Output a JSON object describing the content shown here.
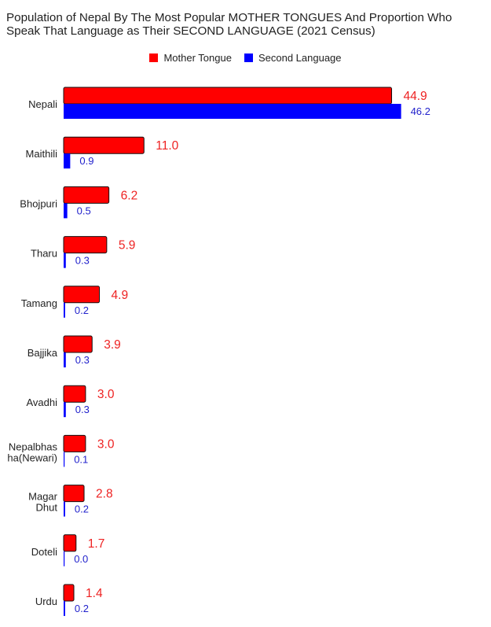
{
  "colors": {
    "mother": "#ff0000",
    "second": "#0000ff",
    "mother_label": "#ee2222",
    "second_label": "#2222cc"
  },
  "chart_data": {
    "type": "bar",
    "orientation": "horizontal",
    "title": "Population of Nepal By The Most Popular MOTHER TONGUES And Proportion Who Speak That Language as Their SECOND LANGUAGE (2021 Census)",
    "categories": [
      [
        "Nepali"
      ],
      [
        "Maithili"
      ],
      [
        "Bhojpuri"
      ],
      [
        "Tharu"
      ],
      [
        "Tamang"
      ],
      [
        "Bajjika"
      ],
      [
        "Avadhi"
      ],
      [
        "Nepalbhas",
        "ha(Newari)"
      ],
      [
        "Magar",
        "Dhut"
      ],
      [
        "Doteli"
      ],
      [
        "Urdu"
      ]
    ],
    "series": [
      {
        "name": "Mother Tongue",
        "values": [
          44.9,
          11.0,
          6.2,
          5.9,
          4.9,
          3.9,
          3.0,
          3.0,
          2.8,
          1.7,
          1.4
        ]
      },
      {
        "name": "Second Language",
        "values": [
          46.2,
          0.9,
          0.5,
          0.3,
          0.2,
          0.3,
          0.3,
          0.1,
          0.2,
          0.0,
          0.2
        ]
      }
    ],
    "value_labels": {
      "mother": [
        "44.9",
        "11.0",
        "6.2",
        "5.9",
        "4.9",
        "3.9",
        "3.0",
        "3.0",
        "2.8",
        "1.7",
        "1.4"
      ],
      "second": [
        "46.2",
        "0.9",
        "0.5",
        "0.3",
        "0.2",
        "0.3",
        "0.3",
        "0.1",
        "0.2",
        "0.0",
        "0.2"
      ]
    },
    "legend_position": "top",
    "grid": false
  }
}
